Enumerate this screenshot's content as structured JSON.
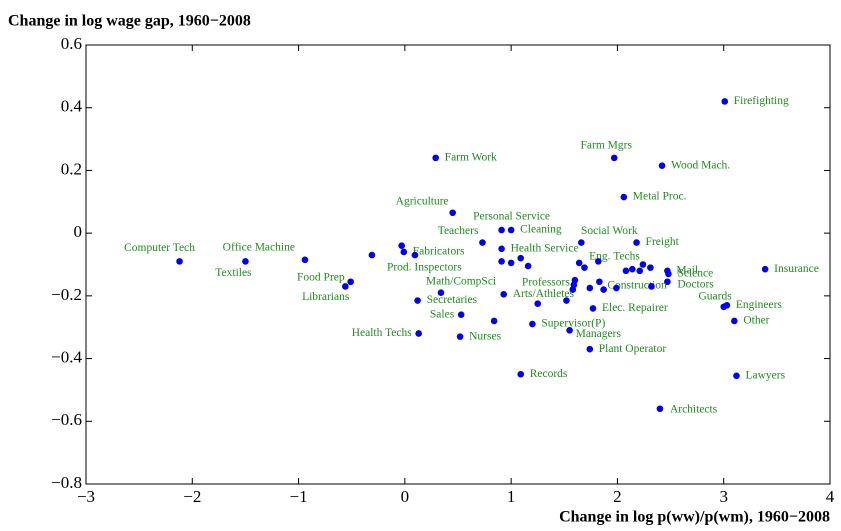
{
  "chart_data": {
    "type": "scatter",
    "title": "Change in log wage gap, 1960−2008",
    "x_label": "Change in log p(ww)/p(wm), 1960−2008",
    "xlim": [
      -3,
      4
    ],
    "ylim": [
      -0.8,
      0.6
    ],
    "xticks": [
      {
        "value": -3,
        "label": "−3"
      },
      {
        "value": -2,
        "label": "−2"
      },
      {
        "value": -1,
        "label": "−1"
      },
      0,
      1,
      2,
      3,
      4
    ],
    "yticks": [
      {
        "value": -0.8,
        "label": "−0.8"
      },
      {
        "value": -0.6,
        "label": "−0.6"
      },
      {
        "value": -0.4,
        "label": "−0.4"
      },
      {
        "value": -0.2,
        "label": "−0.2"
      },
      0,
      0.2,
      0.4,
      0.6
    ],
    "series": [
      {
        "color": "#0000ee",
        "label_color": "#228b22",
        "x": [
          3.01,
          1.97,
          2.42,
          0.29,
          2.06,
          0.45,
          0.91,
          1.0,
          0.73,
          0.91,
          1.66,
          2.18,
          -2.12,
          -1.5,
          -0.94,
          -0.01,
          0.095,
          -0.51,
          -0.56,
          0.34,
          0.12,
          1.64,
          2.47,
          2.48,
          2.47,
          3.39,
          1.83,
          1.59,
          0.93,
          1.77,
          3.0,
          3.03,
          3.1,
          0.53,
          1.2,
          1.55,
          0.13,
          0.52,
          1.74,
          1.09,
          3.12,
          2.4,
          -0.31,
          -0.03,
          0.91,
          1.0,
          1.09,
          1.16,
          0.84,
          1.25,
          1.52,
          1.6,
          1.58,
          1.69,
          1.82,
          1.74,
          1.87,
          1.99,
          2.08,
          2.14,
          2.21,
          2.31,
          2.24,
          2.32
        ],
        "values": [
          0.42,
          0.24,
          0.215,
          0.24,
          0.115,
          0.065,
          0.01,
          0.01,
          -0.03,
          -0.05,
          -0.03,
          -0.03,
          -0.09,
          -0.09,
          -0.085,
          -0.06,
          -0.07,
          -0.155,
          -0.17,
          -0.19,
          -0.215,
          -0.095,
          -0.12,
          -0.13,
          -0.155,
          -0.115,
          -0.155,
          -0.165,
          -0.195,
          -0.24,
          -0.235,
          -0.23,
          -0.28,
          -0.26,
          -0.29,
          -0.31,
          -0.32,
          -0.33,
          -0.37,
          -0.45,
          -0.455,
          -0.56,
          -0.07,
          -0.04,
          -0.09,
          -0.095,
          -0.08,
          -0.105,
          -0.28,
          -0.225,
          -0.215,
          -0.15,
          -0.18,
          -0.11,
          -0.09,
          -0.175,
          -0.18,
          -0.175,
          -0.12,
          -0.115,
          -0.12,
          -0.11,
          -0.1,
          -0.17
        ],
        "labels": [
          "Firefighting",
          "Farm Mgrs",
          "Wood Mach.",
          "Farm Work",
          "Metal Proc.",
          "Agriculture",
          "Personal Service",
          "Cleaning",
          "Teachers",
          "Health Service",
          "Social Work",
          "Freight",
          "Computer Tech",
          "Textiles",
          "Office Machine",
          "Fabricators",
          "Prod. Inspectors",
          "Food Prep",
          "Librarians",
          "Math/CompSci",
          "Secretaries",
          "Eng. Techs",
          "Mail",
          "Science",
          "Doctors",
          "Insurance",
          "Construction",
          "Professors",
          "Arts/Athletes",
          "Elec. Repairer",
          "Guards",
          "Engineers",
          "Other",
          "Sales",
          "Supervisor(P)",
          "Managers",
          "Health Techs",
          "Nurses",
          "Plant Operator",
          "Records",
          "Lawyers",
          "Architects",
          null,
          null,
          null,
          null,
          null,
          null,
          null,
          null,
          null,
          null,
          null,
          null,
          null,
          null,
          null,
          null,
          null,
          null,
          null,
          null,
          null,
          null
        ]
      }
    ]
  }
}
